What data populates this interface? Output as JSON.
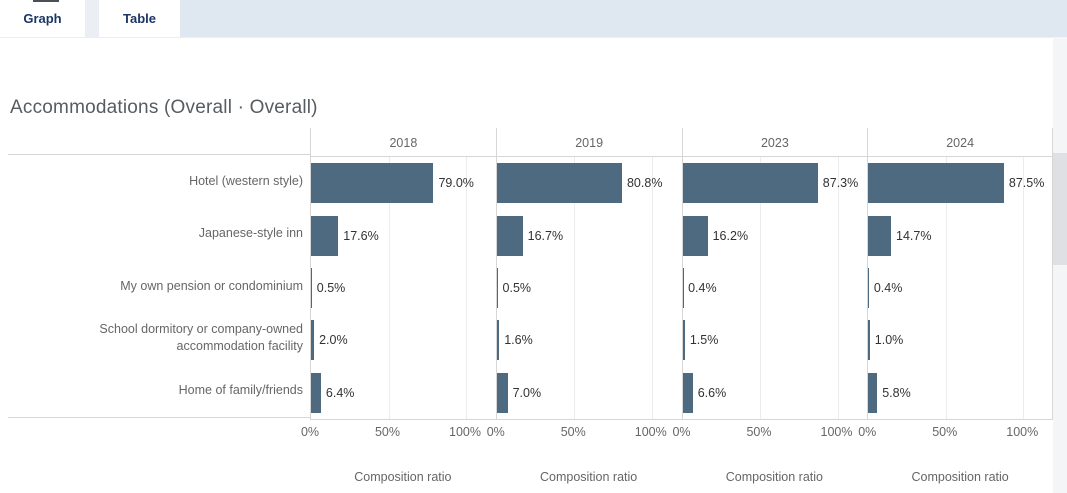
{
  "tabs": [
    {
      "label": "Graph",
      "active": true
    },
    {
      "label": "Table",
      "active": false
    }
  ],
  "title": "Accommodations  (Overall · Overall)",
  "colors": {
    "bar": "#4e6a80",
    "tab_text": "#1a3666",
    "tabbar_fill": "#dfe7f0"
  },
  "chart_data": {
    "type": "bar",
    "orientation": "horizontal",
    "title": "Accommodations  (Overall · Overall)",
    "categories": [
      "Hotel (western style)",
      "Japanese-style inn",
      "My own pension or condominium",
      "School dormitory or company-owned accommodation facility",
      "Home of family/friends"
    ],
    "series": [
      {
        "name": "2018",
        "values": [
          79.0,
          17.6,
          0.5,
          2.0,
          6.4
        ],
        "labels": [
          "79.0%",
          "17.6%",
          "0.5%",
          "2.0%",
          "6.4%"
        ]
      },
      {
        "name": "2019",
        "values": [
          80.8,
          16.7,
          0.5,
          1.6,
          7.0
        ],
        "labels": [
          "80.8%",
          "16.7%",
          "0.5%",
          "1.6%",
          "7.0%"
        ]
      },
      {
        "name": "2023",
        "values": [
          87.3,
          16.2,
          0.4,
          1.5,
          6.6
        ],
        "labels": [
          "87.3%",
          "16.2%",
          "0.4%",
          "1.5%",
          "6.6%"
        ]
      },
      {
        "name": "2024",
        "values": [
          87.5,
          14.7,
          0.4,
          1.0,
          5.8
        ],
        "labels": [
          "87.5%",
          "14.7%",
          "0.4%",
          "1.0%",
          "5.8%"
        ]
      }
    ],
    "xlabel": "Composition ratio",
    "x_ticks": [
      "0%",
      "50%",
      "100%"
    ],
    "xlim": [
      0,
      100
    ],
    "grid": "vertical at 50% and 100%",
    "legend": "none"
  }
}
